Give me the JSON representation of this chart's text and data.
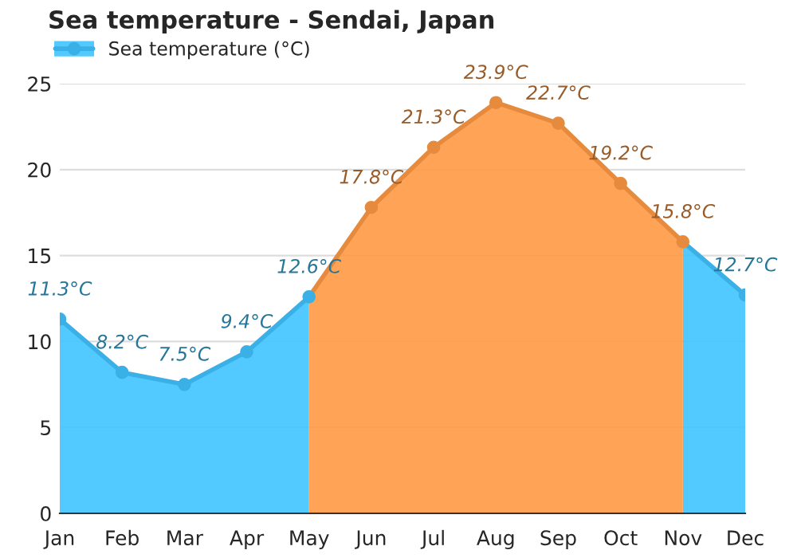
{
  "chart_data": {
    "type": "area",
    "title": "Sea temperature - Sendai, Japan",
    "categories": [
      "Jan",
      "Feb",
      "Mar",
      "Apr",
      "May",
      "Jun",
      "Jul",
      "Aug",
      "Sep",
      "Oct",
      "Nov",
      "Dec"
    ],
    "series": [
      {
        "name": "Sea temperature (°C)",
        "color": "#40c4ff",
        "values": [
          11.3,
          8.2,
          7.5,
          9.4,
          12.6,
          null,
          null,
          null,
          null,
          null,
          15.8,
          12.7
        ],
        "value_labels": [
          "11.3°C",
          "8.2°C",
          "7.5°C",
          "9.4°C",
          "12.6°C",
          null,
          null,
          null,
          null,
          null,
          null,
          "12.7°C"
        ]
      },
      {
        "color": "#ff9a45",
        "values": [
          null,
          null,
          null,
          null,
          12.6,
          17.8,
          21.3,
          23.9,
          22.7,
          19.2,
          15.8,
          null
        ],
        "value_labels": [
          null,
          null,
          null,
          null,
          null,
          "17.8°C",
          "21.3°C",
          "23.9°C",
          "22.7°C",
          "19.2°C",
          "15.8°C",
          null
        ]
      }
    ],
    "ylim": [
      0,
      25
    ],
    "yticks": [
      0,
      5,
      10,
      15,
      20,
      25
    ],
    "grid": "y",
    "legend": "top left",
    "marker": "circle"
  }
}
